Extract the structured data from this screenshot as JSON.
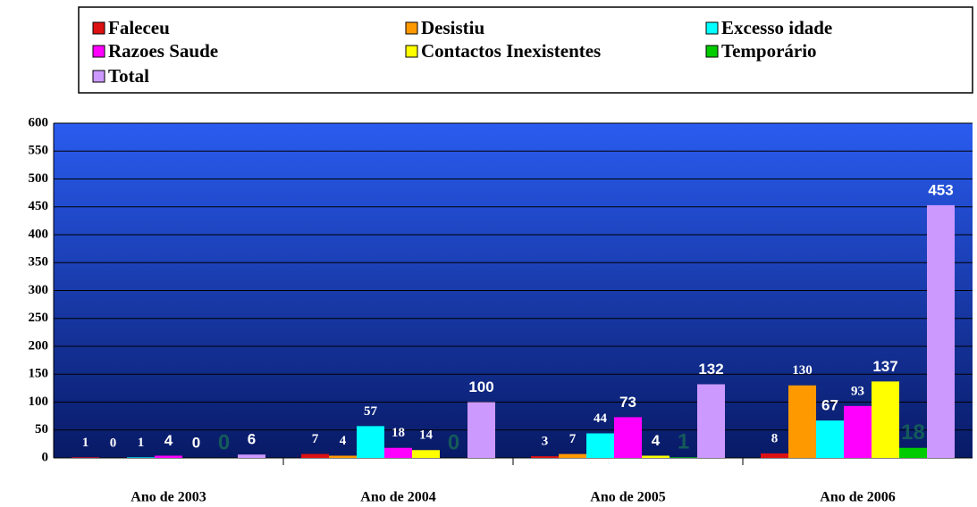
{
  "chart_data": {
    "type": "bar",
    "categories": [
      "Ano de 2003",
      "Ano de 2004",
      "Ano de 2005",
      "Ano de 2006"
    ],
    "series": [
      {
        "name": "Faleceu",
        "color": "#dd1111",
        "values": [
          1,
          7,
          3,
          8
        ]
      },
      {
        "name": "Desistiu",
        "color": "#ff9900",
        "values": [
          0,
          4,
          7,
          130
        ]
      },
      {
        "name": "Excesso idade",
        "color": "#00ffff",
        "values": [
          1,
          57,
          44,
          67
        ]
      },
      {
        "name": "Razoes Saude",
        "color": "#ff00ff",
        "values": [
          4,
          18,
          73,
          93
        ]
      },
      {
        "name": "Contactos Inexistentes",
        "color": "#ffff00",
        "values": [
          0,
          14,
          4,
          137
        ]
      },
      {
        "name": "Temporário",
        "color": "#00cc00",
        "values": [
          0,
          0,
          1,
          18
        ]
      },
      {
        "name": "Total",
        "color": "#cc99ff",
        "values": [
          6,
          100,
          132,
          453
        ]
      }
    ],
    "ylim": [
      0,
      600
    ],
    "yticks": [
      0,
      50,
      100,
      150,
      200,
      250,
      300,
      350,
      400,
      450,
      500,
      550,
      600
    ],
    "grid": true,
    "legend": "top"
  }
}
